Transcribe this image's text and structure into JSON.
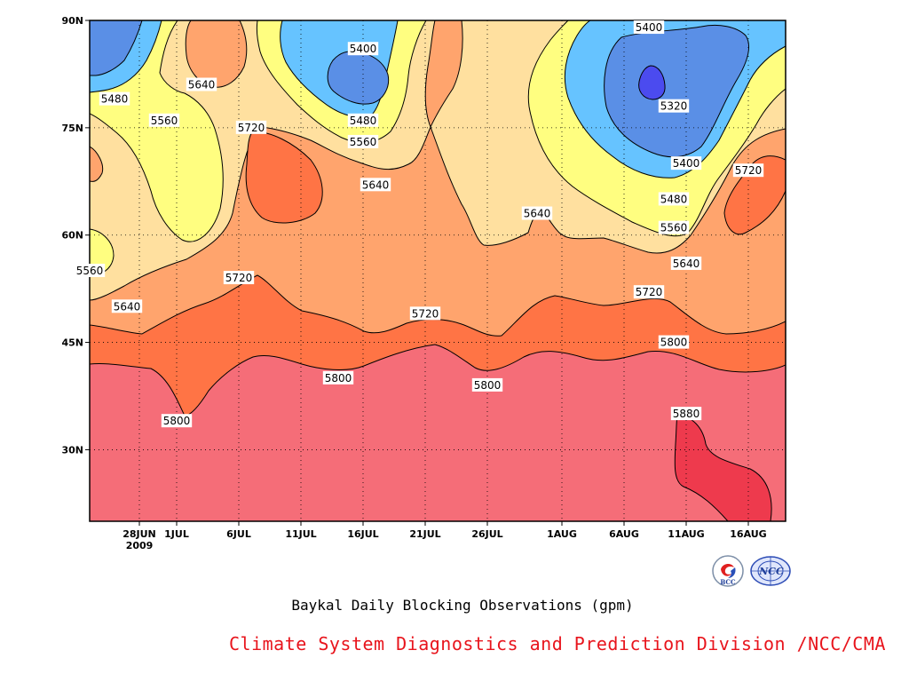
{
  "chart_data": {
    "type": "heatmap",
    "subtype": "filled-contour (time-latitude Hovmoller)",
    "title": "Baykal Daily Blocking Observations (gpm)",
    "xlabel": "",
    "ylabel": "",
    "x_ticks": [
      "28JUN",
      "1JUL",
      "6JUL",
      "11JUL",
      "16JUL",
      "21JUL",
      "26JUL",
      "1AUG",
      "6AUG",
      "11AUG",
      "16AUG"
    ],
    "x_year_label": "2009",
    "x_range": [
      "2009-06-24",
      "2009-08-19"
    ],
    "y_ticks": [
      "30N",
      "45N",
      "60N",
      "75N",
      "90N"
    ],
    "y_tick_values": [
      30,
      45,
      60,
      75,
      90
    ],
    "y_range": [
      20,
      90
    ],
    "grid": "dotted",
    "contour_levels": [
      5320,
      5400,
      5480,
      5560,
      5640,
      5720,
      5800,
      5880
    ],
    "band_colors": [
      "#4b4bef",
      "#5a8fe6",
      "#66c3ff",
      "#fffe80",
      "#ffe09f",
      "#ffa46d",
      "#ff7445",
      "#f56d78",
      "#ee3a4d"
    ],
    "contour_labels": [
      {
        "value": 5400,
        "date": "2009-07-16",
        "lat": 86
      },
      {
        "value": 5400,
        "date": "2009-08-08",
        "lat": 89
      },
      {
        "value": 5480,
        "date": "2009-06-26",
        "lat": 79
      },
      {
        "value": 5640,
        "date": "2009-07-03",
        "lat": 81
      },
      {
        "value": 5560,
        "date": "2009-06-30",
        "lat": 76
      },
      {
        "value": 5720,
        "date": "2009-07-07",
        "lat": 75
      },
      {
        "value": 5480,
        "date": "2009-07-16",
        "lat": 76
      },
      {
        "value": 5560,
        "date": "2009-07-16",
        "lat": 73
      },
      {
        "value": 5640,
        "date": "2009-07-17",
        "lat": 67
      },
      {
        "value": 5320,
        "date": "2009-08-10",
        "lat": 78
      },
      {
        "value": 5400,
        "date": "2009-08-11",
        "lat": 70
      },
      {
        "value": 5480,
        "date": "2009-08-10",
        "lat": 65
      },
      {
        "value": 5560,
        "date": "2009-08-10",
        "lat": 61
      },
      {
        "value": 5640,
        "date": "2009-08-11",
        "lat": 56
      },
      {
        "value": 5720,
        "date": "2009-08-16",
        "lat": 69
      },
      {
        "value": 5640,
        "date": "2009-07-30",
        "lat": 63
      },
      {
        "value": 5560,
        "date": "2009-06-24",
        "lat": 55
      },
      {
        "value": 5640,
        "date": "2009-06-27",
        "lat": 50
      },
      {
        "value": 5720,
        "date": "2009-07-06",
        "lat": 54
      },
      {
        "value": 5720,
        "date": "2009-07-21",
        "lat": 49
      },
      {
        "value": 5720,
        "date": "2009-08-08",
        "lat": 52
      },
      {
        "value": 5800,
        "date": "2009-08-10",
        "lat": 45
      },
      {
        "value": 5800,
        "date": "2009-07-14",
        "lat": 40
      },
      {
        "value": 5800,
        "date": "2009-07-26",
        "lat": 39
      },
      {
        "value": 5800,
        "date": "2009-07-01",
        "lat": 34
      },
      {
        "value": 5880,
        "date": "2009-08-11",
        "lat": 35
      }
    ]
  },
  "caption": {
    "title": "Baykal Daily Blocking Observations (gpm)",
    "credit": "Climate System Diagnostics and Prediction Division /NCC/CMA"
  },
  "logos": [
    {
      "icon": "bcc-logo-icon",
      "text": "BCC",
      "color": "#1f3f9a"
    },
    {
      "icon": "ncc-logo-icon",
      "text": "NCC",
      "color": "#1f3f9a"
    }
  ]
}
